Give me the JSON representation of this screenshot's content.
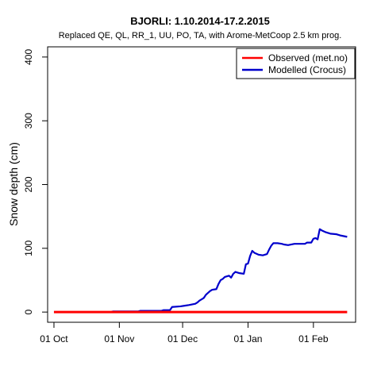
{
  "chart_data": {
    "type": "line",
    "title": "BJORLI: 1.10.2014-17.2.2015",
    "subtitle": "Replaced QE, QL, RR_1, UU, PO, TA,  with Arome-MetCoop 2.5 km prog.",
    "xlabel": "",
    "ylabel": "Snow depth (cm)",
    "xlim": [
      "2014-09-28",
      "2015-02-21"
    ],
    "ylim": [
      -16,
      416
    ],
    "x_ticks": [
      {
        "date": "2014-10-01",
        "label": "01 Oct"
      },
      {
        "date": "2014-11-01",
        "label": "01 Nov"
      },
      {
        "date": "2014-12-01",
        "label": "01 Dec"
      },
      {
        "date": "2015-01-01",
        "label": "01 Jan"
      },
      {
        "date": "2015-02-01",
        "label": "01 Feb"
      }
    ],
    "y_ticks": [
      0,
      100,
      200,
      300,
      400
    ],
    "legend_position": "top-right",
    "series": [
      {
        "name": "Observed (met.no)",
        "color": "#ff0000",
        "points": [
          [
            "2014-10-01",
            0
          ],
          [
            "2015-02-17",
            0
          ]
        ]
      },
      {
        "name": "Modelled (Crocus)",
        "color": "#0000cc",
        "points": [
          [
            "2014-10-01",
            0
          ],
          [
            "2014-10-28",
            0
          ],
          [
            "2014-10-29",
            1
          ],
          [
            "2014-11-10",
            1
          ],
          [
            "2014-11-11",
            2
          ],
          [
            "2014-11-21",
            2
          ],
          [
            "2014-11-22",
            3
          ],
          [
            "2014-11-25",
            3
          ],
          [
            "2014-11-26",
            8
          ],
          [
            "2014-11-30",
            9
          ],
          [
            "2014-12-02",
            10
          ],
          [
            "2014-12-04",
            11
          ],
          [
            "2014-12-07",
            13
          ],
          [
            "2014-12-08",
            15
          ],
          [
            "2014-12-09",
            18
          ],
          [
            "2014-12-11",
            22
          ],
          [
            "2014-12-12",
            27
          ],
          [
            "2014-12-14",
            33
          ],
          [
            "2014-12-15",
            35
          ],
          [
            "2014-12-17",
            36
          ],
          [
            "2014-12-18",
            44
          ],
          [
            "2014-12-19",
            50
          ],
          [
            "2014-12-20",
            52
          ],
          [
            "2014-12-21",
            55
          ],
          [
            "2014-12-23",
            57
          ],
          [
            "2014-12-24",
            54
          ],
          [
            "2014-12-25",
            60
          ],
          [
            "2014-12-26",
            63
          ],
          [
            "2014-12-28",
            61
          ],
          [
            "2014-12-30",
            60
          ],
          [
            "2014-12-31",
            75
          ],
          [
            "2015-01-01",
            76
          ],
          [
            "2015-01-02",
            88
          ],
          [
            "2015-01-03",
            96
          ],
          [
            "2015-01-04",
            93
          ],
          [
            "2015-01-06",
            90
          ],
          [
            "2015-01-08",
            89
          ],
          [
            "2015-01-10",
            91
          ],
          [
            "2015-01-11",
            98
          ],
          [
            "2015-01-12",
            104
          ],
          [
            "2015-01-13",
            108
          ],
          [
            "2015-01-15",
            108
          ],
          [
            "2015-01-17",
            107
          ],
          [
            "2015-01-18",
            106
          ],
          [
            "2015-01-20",
            105
          ],
          [
            "2015-01-23",
            107
          ],
          [
            "2015-01-28",
            107
          ],
          [
            "2015-01-29",
            109
          ],
          [
            "2015-01-31",
            109
          ],
          [
            "2015-02-01",
            115
          ],
          [
            "2015-02-02",
            116
          ],
          [
            "2015-02-03",
            114
          ],
          [
            "2015-02-04",
            130
          ],
          [
            "2015-02-05",
            128
          ],
          [
            "2015-02-07",
            125
          ],
          [
            "2015-02-09",
            123
          ],
          [
            "2015-02-12",
            122
          ],
          [
            "2015-02-14",
            120
          ],
          [
            "2015-02-17",
            118
          ]
        ]
      }
    ]
  }
}
